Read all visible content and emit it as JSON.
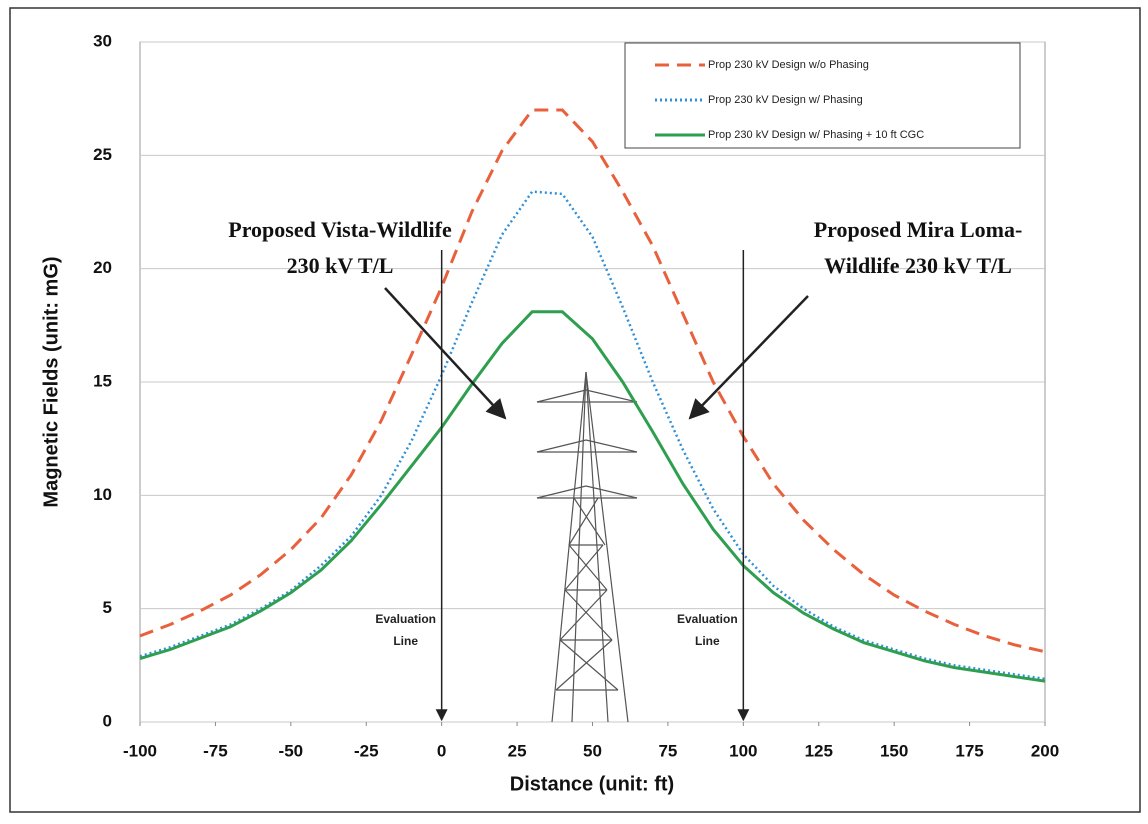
{
  "chart_data": {
    "type": "line",
    "xlabel": "Distance (unit: ft)",
    "ylabel": "Magnetic Fields (unit: mG)",
    "x": [
      -100,
      -90,
      -80,
      -70,
      -60,
      -50,
      -40,
      -30,
      -20,
      -10,
      0,
      10,
      20,
      30,
      40,
      50,
      60,
      70,
      80,
      90,
      100,
      110,
      120,
      130,
      140,
      150,
      160,
      170,
      180,
      190,
      200
    ],
    "series": [
      {
        "name": "Prop 230 kV Design w/o Phasing",
        "color": "#e8603c",
        "dash": "dashed",
        "values": [
          3.8,
          4.3,
          4.9,
          5.6,
          6.5,
          7.6,
          9.0,
          10.9,
          13.3,
          16.2,
          19.2,
          22.5,
          25.2,
          27.0,
          27.0,
          25.6,
          23.4,
          21.0,
          18.0,
          15.0,
          12.6,
          10.5,
          8.9,
          7.6,
          6.5,
          5.6,
          4.9,
          4.3,
          3.8,
          3.4,
          3.1
        ]
      },
      {
        "name": "Prop 230 kV Design w/ Phasing",
        "color": "#2f8fd8",
        "dash": "dotted",
        "values": [
          2.9,
          3.3,
          3.8,
          4.3,
          5.0,
          5.8,
          6.9,
          8.2,
          10.0,
          12.4,
          15.3,
          18.5,
          21.5,
          23.4,
          23.3,
          21.4,
          18.3,
          15.0,
          12.0,
          9.4,
          7.4,
          6.0,
          5.0,
          4.2,
          3.6,
          3.2,
          2.8,
          2.5,
          2.3,
          2.1,
          1.9
        ]
      },
      {
        "name": "Prop 230 kV Design w/ Phasing + 10 ft CGC",
        "color": "#2e9e4f",
        "dash": "solid",
        "values": [
          2.8,
          3.2,
          3.7,
          4.2,
          4.9,
          5.7,
          6.7,
          8.0,
          9.6,
          11.3,
          13.0,
          14.9,
          16.7,
          18.1,
          18.1,
          16.9,
          15.0,
          12.8,
          10.5,
          8.5,
          6.9,
          5.7,
          4.8,
          4.1,
          3.5,
          3.1,
          2.7,
          2.4,
          2.2,
          2.0,
          1.8
        ]
      }
    ],
    "xlim": [
      -100,
      200
    ],
    "xticks": [
      -100,
      -75,
      -50,
      -25,
      0,
      25,
      50,
      75,
      100,
      125,
      150,
      175,
      200
    ],
    "ylim": [
      0,
      30
    ],
    "yticks": [
      0,
      5,
      10,
      15,
      20,
      25,
      30
    ],
    "grid": true,
    "legend": "upper right",
    "evaluation_lines": [
      {
        "x": 0,
        "label": [
          "Evaluation",
          "Line"
        ]
      },
      {
        "x": 100,
        "label": [
          "Evaluation",
          "Line"
        ]
      }
    ],
    "annotations": [
      [
        "Proposed Vista-Wildlife",
        "230 kV T/L"
      ],
      [
        "Proposed Mira Loma-",
        "Wildlife 230 kV T/L"
      ]
    ]
  }
}
